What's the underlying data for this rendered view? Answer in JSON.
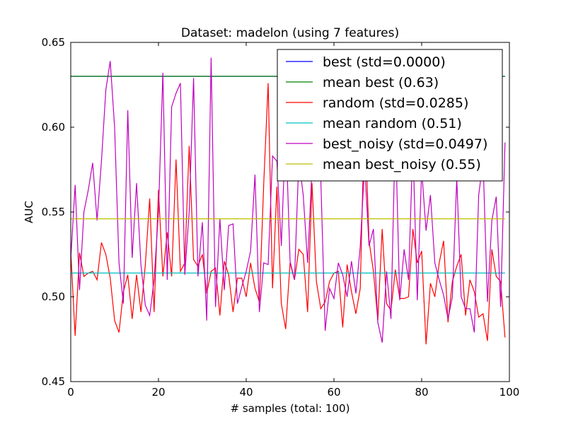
{
  "chart_data": {
    "type": "line",
    "title": "Dataset: madelon (using 7 features)",
    "xlabel": "# samples (total: 100)",
    "ylabel": "AUC",
    "xlim": [
      0,
      100
    ],
    "ylim": [
      0.45,
      0.65
    ],
    "xticks": [
      "0",
      "20",
      "40",
      "60",
      "80",
      "100"
    ],
    "yticks": [
      "0.45",
      "0.50",
      "0.55",
      "0.60",
      "0.65"
    ],
    "grid": false,
    "legend_position": "top-right",
    "series": [
      {
        "name": "best (std=0.0000)",
        "color": "#0000ff",
        "x": [
          0,
          99
        ],
        "values": [
          0.63,
          0.63
        ]
      },
      {
        "name": "mean best (0.63)",
        "color": "#008000",
        "x": [
          0,
          99
        ],
        "values": [
          0.63,
          0.63
        ]
      },
      {
        "name": "random (std=0.0285)",
        "color": "#ff0000",
        "values": [
          0.527,
          0.477,
          0.526,
          0.512,
          0.514,
          0.515,
          0.51,
          0.532,
          0.525,
          0.511,
          0.486,
          0.479,
          0.503,
          0.513,
          0.487,
          0.513,
          0.491,
          0.519,
          0.558,
          0.491,
          0.563,
          0.512,
          0.538,
          0.512,
          0.581,
          0.515,
          0.52,
          0.589,
          0.522,
          0.518,
          0.525,
          0.502,
          0.515,
          0.517,
          0.489,
          0.521,
          0.513,
          0.491,
          0.511,
          0.511,
          0.5,
          0.52,
          0.505,
          0.497,
          0.567,
          0.626,
          0.505,
          0.565,
          0.496,
          0.481,
          0.52,
          0.51,
          0.528,
          0.525,
          0.491,
          0.567,
          0.509,
          0.493,
          0.497,
          0.509,
          0.514,
          0.515,
          0.482,
          0.519,
          0.503,
          0.49,
          0.505,
          0.611,
          0.533,
          0.515,
          0.486,
          0.54,
          0.496,
          0.492,
          0.516,
          0.499,
          0.499,
          0.5,
          0.54,
          0.52,
          0.527,
          0.472,
          0.508,
          0.5,
          0.52,
          0.533,
          0.485,
          0.509,
          0.518,
          0.525,
          0.489,
          0.51,
          0.503,
          0.488,
          0.49,
          0.474,
          0.528,
          0.512,
          0.509,
          0.476
        ]
      },
      {
        "name": "mean random (0.51)",
        "color": "#00bfbf",
        "x": [
          0,
          99
        ],
        "values": [
          0.514,
          0.514
        ]
      },
      {
        "name": "best_noisy (std=0.0497)",
        "color": "#bf00bf",
        "values": [
          0.522,
          0.566,
          0.504,
          0.55,
          0.563,
          0.579,
          0.545,
          0.58,
          0.622,
          0.639,
          0.6,
          0.52,
          0.496,
          0.61,
          0.523,
          0.567,
          0.519,
          0.495,
          0.489,
          0.51,
          0.55,
          0.632,
          0.51,
          0.612,
          0.62,
          0.626,
          0.513,
          0.55,
          0.629,
          0.512,
          0.544,
          0.486,
          0.641,
          0.494,
          0.546,
          0.504,
          0.542,
          0.543,
          0.496,
          0.506,
          0.515,
          0.527,
          0.572,
          0.491,
          0.52,
          0.519,
          0.583,
          0.58,
          0.53,
          0.6,
          0.521,
          0.51,
          0.581,
          0.56,
          0.52,
          0.576,
          0.582,
          0.57,
          0.48,
          0.505,
          0.499,
          0.52,
          0.513,
          0.5,
          0.521,
          0.502,
          0.53,
          0.578,
          0.53,
          0.54,
          0.485,
          0.473,
          0.515,
          0.487,
          0.6,
          0.498,
          0.528,
          0.51,
          0.59,
          0.498,
          0.575,
          0.539,
          0.56,
          0.52,
          0.51,
          0.501,
          0.487,
          0.5,
          0.57,
          0.5,
          0.493,
          0.493,
          0.479,
          0.56,
          0.58,
          0.497,
          0.545,
          0.559,
          0.494,
          0.591
        ]
      },
      {
        "name": "mean best_noisy (0.55)",
        "color": "#bfbf00",
        "x": [
          0,
          99
        ],
        "values": [
          0.546,
          0.546
        ]
      }
    ]
  }
}
